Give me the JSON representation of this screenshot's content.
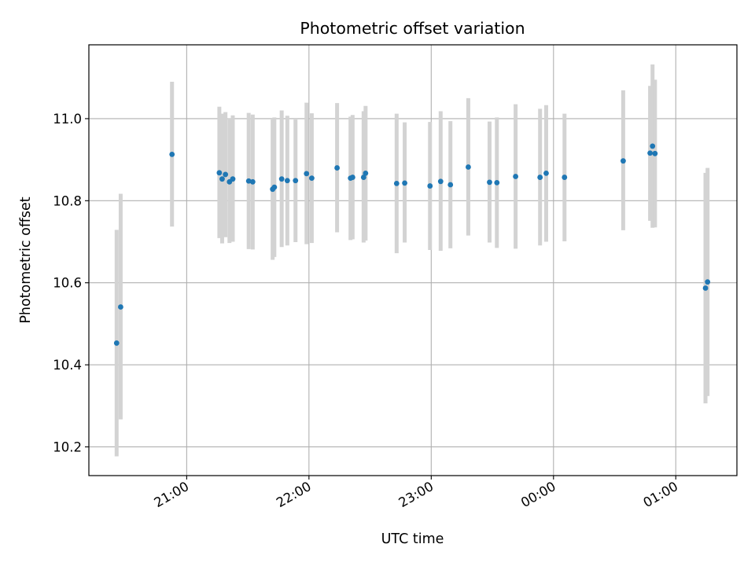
{
  "chart_data": {
    "type": "scatter",
    "title": "Photometric offset variation",
    "xlabel": "UTC time",
    "ylabel": "Photometric offset",
    "grid": true,
    "x_unit": "hours since 00:00 UTC (negative = previous day)",
    "x_ticks": [
      {
        "value": -3,
        "label": "21:00"
      },
      {
        "value": -2,
        "label": "22:00"
      },
      {
        "value": -1,
        "label": "23:00"
      },
      {
        "value": 0,
        "label": "00:00"
      },
      {
        "value": 1,
        "label": "01:00"
      }
    ],
    "xlim": [
      -3.8,
      1.5
    ],
    "ylim": [
      10.13,
      11.18
    ],
    "y_ticks": [
      {
        "value": 10.2,
        "label": "10.2"
      },
      {
        "value": 10.4,
        "label": "10.4"
      },
      {
        "value": 10.6,
        "label": "10.6"
      },
      {
        "value": 10.8,
        "label": "10.8"
      },
      {
        "value": 11.0,
        "label": "11.0"
      }
    ],
    "colors": {
      "point": "#1f77b4",
      "errorbar": "#d3d3d3",
      "grid": "#b0b0b0"
    },
    "points": [
      {
        "x": -3.573,
        "y": 10.453,
        "lo": 10.177,
        "hi": 10.729
      },
      {
        "x": -3.54,
        "y": 10.541,
        "lo": 10.267,
        "hi": 10.817
      },
      {
        "x": -3.12,
        "y": 10.913,
        "lo": 10.737,
        "hi": 11.09
      },
      {
        "x": -2.733,
        "y": 10.868,
        "lo": 10.709,
        "hi": 11.029
      },
      {
        "x": -2.71,
        "y": 10.853,
        "lo": 10.696,
        "hi": 11.012
      },
      {
        "x": -2.683,
        "y": 10.864,
        "lo": 10.711,
        "hi": 11.016
      },
      {
        "x": -2.65,
        "y": 10.846,
        "lo": 10.697,
        "hi": 11.001
      },
      {
        "x": -2.623,
        "y": 10.853,
        "lo": 10.7,
        "hi": 11.008
      },
      {
        "x": -2.493,
        "y": 10.848,
        "lo": 10.682,
        "hi": 11.014
      },
      {
        "x": -2.46,
        "y": 10.846,
        "lo": 10.681,
        "hi": 11.01
      },
      {
        "x": -2.297,
        "y": 10.828,
        "lo": 10.656,
        "hi": 10.998
      },
      {
        "x": -2.283,
        "y": 10.833,
        "lo": 10.663,
        "hi": 11.003
      },
      {
        "x": -2.223,
        "y": 10.853,
        "lo": 10.687,
        "hi": 11.02
      },
      {
        "x": -2.177,
        "y": 10.849,
        "lo": 10.691,
        "hi": 11.007
      },
      {
        "x": -2.11,
        "y": 10.849,
        "lo": 10.699,
        "hi": 10.998
      },
      {
        "x": -2.02,
        "y": 10.866,
        "lo": 10.694,
        "hi": 11.039
      },
      {
        "x": -1.977,
        "y": 10.855,
        "lo": 10.697,
        "hi": 11.013
      },
      {
        "x": -1.77,
        "y": 10.88,
        "lo": 10.723,
        "hi": 11.038
      },
      {
        "x": -1.66,
        "y": 10.855,
        "lo": 10.704,
        "hi": 11.005
      },
      {
        "x": -1.643,
        "y": 10.857,
        "lo": 10.706,
        "hi": 11.009
      },
      {
        "x": -1.553,
        "y": 10.857,
        "lo": 10.698,
        "hi": 11.018
      },
      {
        "x": -1.537,
        "y": 10.867,
        "lo": 10.703,
        "hi": 11.031
      },
      {
        "x": -1.283,
        "y": 10.842,
        "lo": 10.672,
        "hi": 11.012
      },
      {
        "x": -1.217,
        "y": 10.843,
        "lo": 10.698,
        "hi": 10.991
      },
      {
        "x": -1.01,
        "y": 10.836,
        "lo": 10.68,
        "hi": 10.992
      },
      {
        "x": -0.923,
        "y": 10.847,
        "lo": 10.678,
        "hi": 11.018
      },
      {
        "x": -0.843,
        "y": 10.839,
        "lo": 10.684,
        "hi": 10.994
      },
      {
        "x": -0.697,
        "y": 10.882,
        "lo": 10.715,
        "hi": 11.05
      },
      {
        "x": -0.523,
        "y": 10.845,
        "lo": 10.698,
        "hi": 10.993
      },
      {
        "x": -0.463,
        "y": 10.844,
        "lo": 10.685,
        "hi": 11.003
      },
      {
        "x": -0.31,
        "y": 10.859,
        "lo": 10.683,
        "hi": 11.035
      },
      {
        "x": -0.11,
        "y": 10.857,
        "lo": 10.691,
        "hi": 11.024
      },
      {
        "x": -0.06,
        "y": 10.867,
        "lo": 10.7,
        "hi": 11.033
      },
      {
        "x": 0.09,
        "y": 10.857,
        "lo": 10.701,
        "hi": 11.012
      },
      {
        "x": 0.57,
        "y": 10.897,
        "lo": 10.728,
        "hi": 11.069
      },
      {
        "x": 0.79,
        "y": 10.916,
        "lo": 10.751,
        "hi": 11.08
      },
      {
        "x": 0.81,
        "y": 10.933,
        "lo": 10.734,
        "hi": 11.132
      },
      {
        "x": 0.83,
        "y": 10.915,
        "lo": 10.735,
        "hi": 11.095
      },
      {
        "x": 1.243,
        "y": 10.587,
        "lo": 10.306,
        "hi": 10.868
      },
      {
        "x": 1.26,
        "y": 10.602,
        "lo": 10.324,
        "hi": 10.88
      }
    ]
  }
}
